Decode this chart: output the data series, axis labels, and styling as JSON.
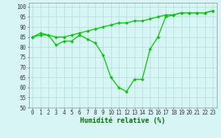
{
  "line1_x": [
    0,
    1,
    2,
    3,
    4,
    5,
    6,
    7,
    8,
    9,
    10,
    11,
    12,
    13,
    14,
    15,
    16,
    17,
    18,
    19,
    20,
    21,
    22,
    23
  ],
  "line1_y": [
    85,
    86,
    86,
    85,
    85,
    86,
    87,
    88,
    89,
    90,
    91,
    92,
    92,
    93,
    93,
    94,
    95,
    96,
    96,
    97,
    97,
    97,
    97,
    98
  ],
  "line2_x": [
    0,
    1,
    2,
    3,
    4,
    5,
    6,
    7,
    8,
    9,
    10,
    11,
    12,
    13,
    14,
    15,
    16,
    17,
    18,
    19,
    20,
    21,
    22,
    23
  ],
  "line2_y": [
    85,
    87,
    86,
    81,
    83,
    83,
    86,
    84,
    82,
    76,
    65,
    60,
    58,
    64,
    64,
    79,
    85,
    95,
    96,
    97,
    97,
    97,
    97,
    98
  ],
  "line_color": "#00cc00",
  "marker": "D",
  "marker_size": 2.0,
  "xlabel": "Humidité relative (%)",
  "xlabel_color": "#007700",
  "background_color": "#d8f5f5",
  "grid_color": "#aaddcc",
  "ylim": [
    50,
    102
  ],
  "xlim": [
    -0.5,
    23.5
  ],
  "yticks": [
    50,
    55,
    60,
    65,
    70,
    75,
    80,
    85,
    90,
    95,
    100
  ],
  "xticks": [
    0,
    1,
    2,
    3,
    4,
    5,
    6,
    7,
    8,
    9,
    10,
    11,
    12,
    13,
    14,
    15,
    16,
    17,
    18,
    19,
    20,
    21,
    22,
    23
  ],
  "xtick_labels": [
    "0",
    "1",
    "2",
    "3",
    "4",
    "5",
    "6",
    "7",
    "8",
    "9",
    "10",
    "11",
    "12",
    "13",
    "14",
    "15",
    "16",
    "17",
    "18",
    "19",
    "20",
    "21",
    "22",
    "23"
  ],
  "tick_fontsize": 5.5,
  "xlabel_fontsize": 7.0,
  "line_width": 1.0
}
